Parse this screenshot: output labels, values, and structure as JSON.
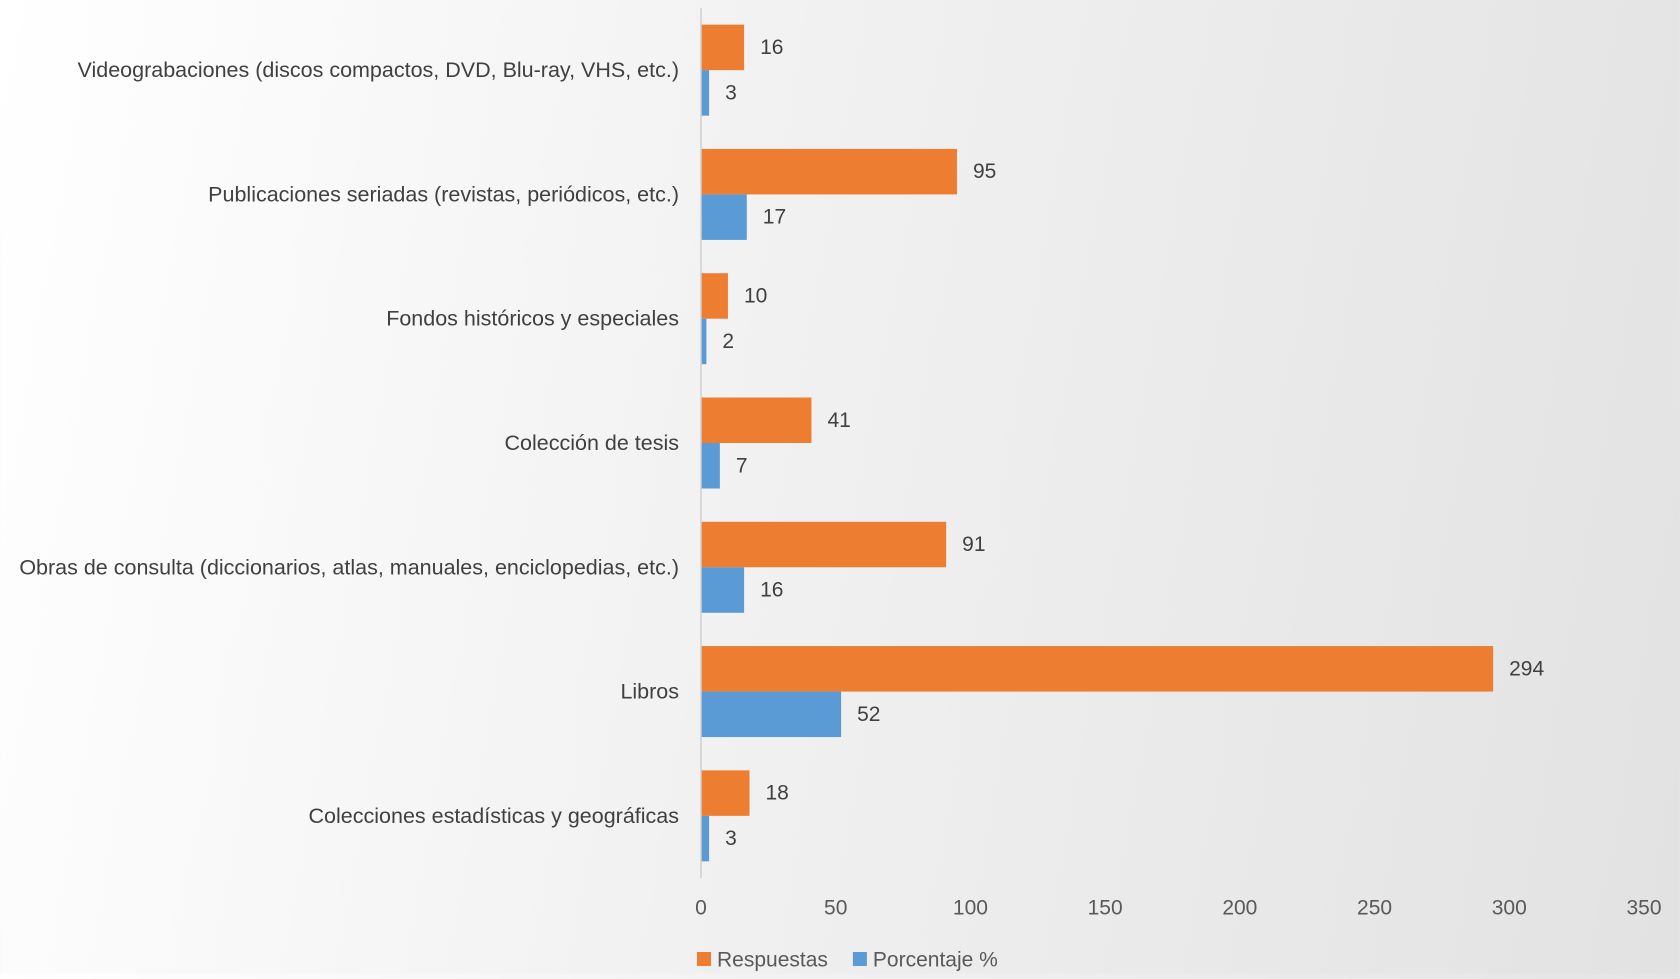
{
  "chart_data": {
    "type": "bar",
    "orientation": "horizontal",
    "title": "",
    "xlabel": "",
    "ylabel": "",
    "categories": [
      "Videograbaciones (discos compactos, DVD, Blu-ray, VHS, etc.)",
      "Publicaciones seriadas (revistas, periódicos, etc.)",
      "Fondos históricos y especiales",
      "Colección de tesis",
      "Obras de consulta (diccionarios, atlas, manuales, enciclopedias, etc.)",
      "Libros",
      "Colecciones estadísticas y geográficas"
    ],
    "series": [
      {
        "name": "Respuestas",
        "color": "#ED7D31",
        "values": [
          16,
          95,
          10,
          41,
          91,
          294,
          18
        ]
      },
      {
        "name": "Porcentaje %",
        "color": "#5B9BD5",
        "values": [
          3,
          17,
          2,
          7,
          16,
          52,
          3
        ]
      }
    ],
    "xlim": [
      0,
      350
    ],
    "xticks": [
      "0",
      "50",
      "100",
      "150",
      "200",
      "250",
      "300",
      "350"
    ],
    "grid": false,
    "legend": "bottom"
  }
}
